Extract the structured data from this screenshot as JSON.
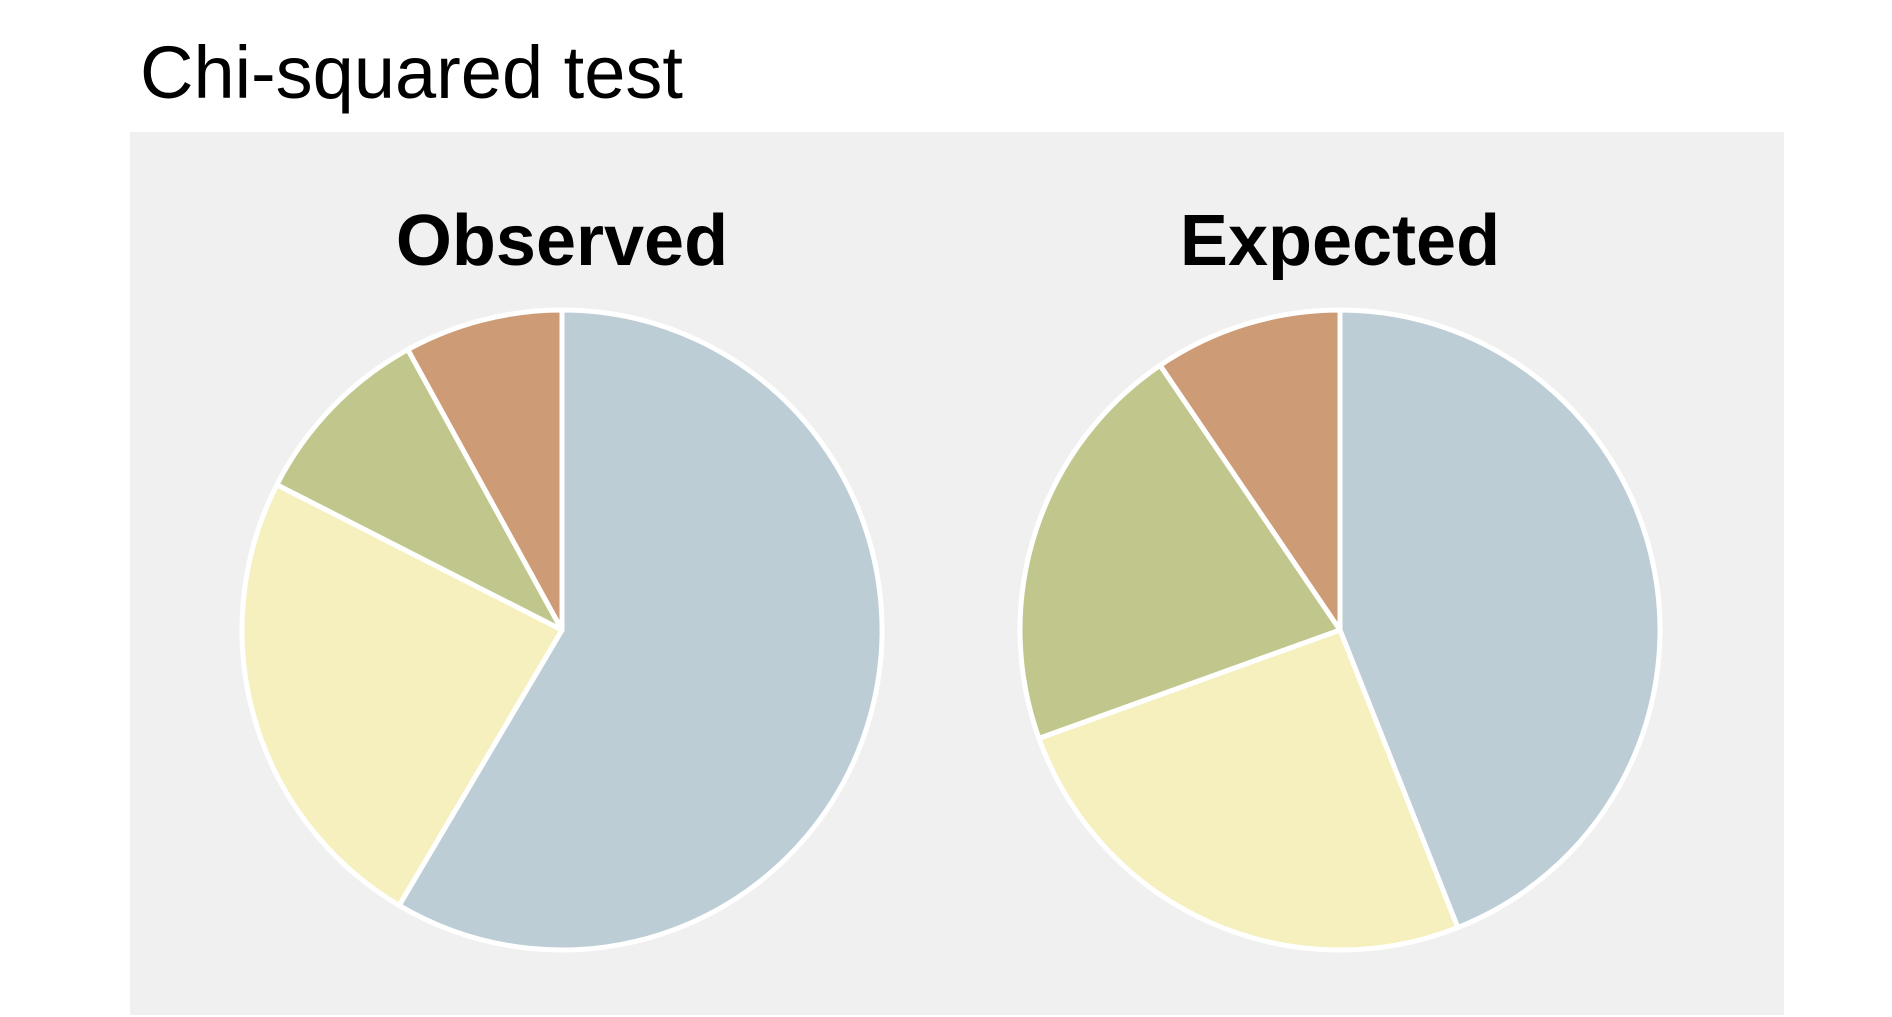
{
  "title": "Chi-squared test",
  "chart_data": [
    {
      "type": "pie",
      "title": "Observed",
      "categories": [
        "",
        "",
        "",
        ""
      ],
      "values": [
        58.5,
        24.0,
        9.5,
        8.0
      ],
      "colors": [
        "#bccdd6",
        "#f5f0bd",
        "#c1c78c",
        "#cd9b75"
      ],
      "start_angle": "top",
      "direction": "clockwise"
    },
    {
      "type": "pie",
      "title": "Expected",
      "categories": [
        "",
        "",
        "",
        ""
      ],
      "values": [
        44.0,
        25.5,
        21.0,
        9.5
      ],
      "colors": [
        "#bccdd6",
        "#f5f0bd",
        "#c1c78c",
        "#cd9b75"
      ],
      "start_angle": "top",
      "direction": "clockwise"
    }
  ]
}
